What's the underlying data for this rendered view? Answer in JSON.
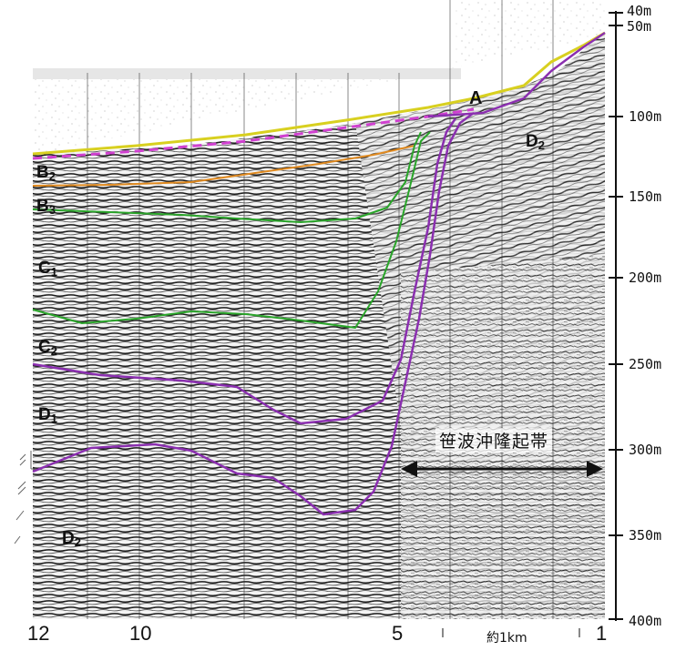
{
  "depth_scale": {
    "labels": [
      "40m",
      "50m",
      "100m",
      "150m",
      "200m",
      "250m",
      "300m",
      "350m",
      "400m"
    ]
  },
  "x_axis": {
    "labels": [
      "12",
      "10",
      "5",
      "1"
    ],
    "scale_text": "約1km"
  },
  "layer_labels": {
    "A": "A",
    "D2_right": {
      "main": "D",
      "sub": "2"
    },
    "B2": {
      "main": "B",
      "sub": "2"
    },
    "B3": {
      "main": "B",
      "sub": "3"
    },
    "C1": {
      "main": "C",
      "sub": "1"
    },
    "C2": {
      "main": "C",
      "sub": "2"
    },
    "D1": {
      "main": "D",
      "sub": "1"
    },
    "D2_left": {
      "main": "D",
      "sub": "2"
    }
  },
  "uplift_zone_label": "笹波沖隆起帯",
  "colors": {
    "seafloor": "#d8d020",
    "horizon_A": "#d040d0",
    "horizon_B3_top": "#e08a20",
    "horizon_green": "#2aa52a",
    "horizon_purple": "#8b2fb0"
  }
}
